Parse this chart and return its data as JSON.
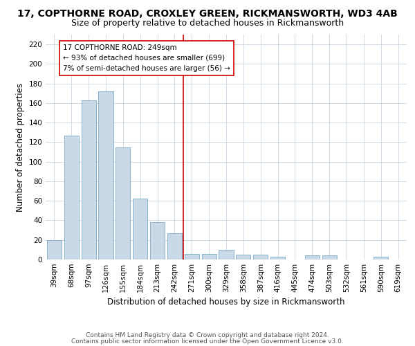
{
  "title": "17, COPTHORNE ROAD, CROXLEY GREEN, RICKMANSWORTH, WD3 4AB",
  "subtitle": "Size of property relative to detached houses in Rickmansworth",
  "xlabel": "Distribution of detached houses by size in Rickmansworth",
  "ylabel": "Number of detached properties",
  "categories": [
    "39sqm",
    "68sqm",
    "97sqm",
    "126sqm",
    "155sqm",
    "184sqm",
    "213sqm",
    "242sqm",
    "271sqm",
    "300sqm",
    "329sqm",
    "358sqm",
    "387sqm",
    "416sqm",
    "445sqm",
    "474sqm",
    "503sqm",
    "532sqm",
    "561sqm",
    "590sqm",
    "619sqm"
  ],
  "values": [
    20,
    127,
    163,
    172,
    115,
    62,
    38,
    27,
    6,
    6,
    10,
    5,
    5,
    3,
    0,
    4,
    4,
    0,
    0,
    3,
    0
  ],
  "bar_color": "#c9d9e8",
  "bar_edge_color": "#7aaac8",
  "vline_x": 7.5,
  "vline_color": "#cc0000",
  "annotation_text": "17 COPTHORNE ROAD: 249sqm\n← 93% of detached houses are smaller (699)\n7% of semi-detached houses are larger (56) →",
  "annotation_box_color": "#ffffff",
  "annotation_box_edge": "#cc0000",
  "ylim": [
    0,
    230
  ],
  "yticks": [
    0,
    20,
    40,
    60,
    80,
    100,
    120,
    140,
    160,
    180,
    200,
    220
  ],
  "footer1": "Contains HM Land Registry data © Crown copyright and database right 2024.",
  "footer2": "Contains public sector information licensed under the Open Government Licence v3.0.",
  "bg_color": "#ffffff",
  "grid_color": "#c8d4e0",
  "title_fontsize": 10,
  "subtitle_fontsize": 9,
  "axis_label_fontsize": 8.5,
  "tick_fontsize": 7.5,
  "footer_fontsize": 6.5,
  "annot_fontsize": 7.5
}
